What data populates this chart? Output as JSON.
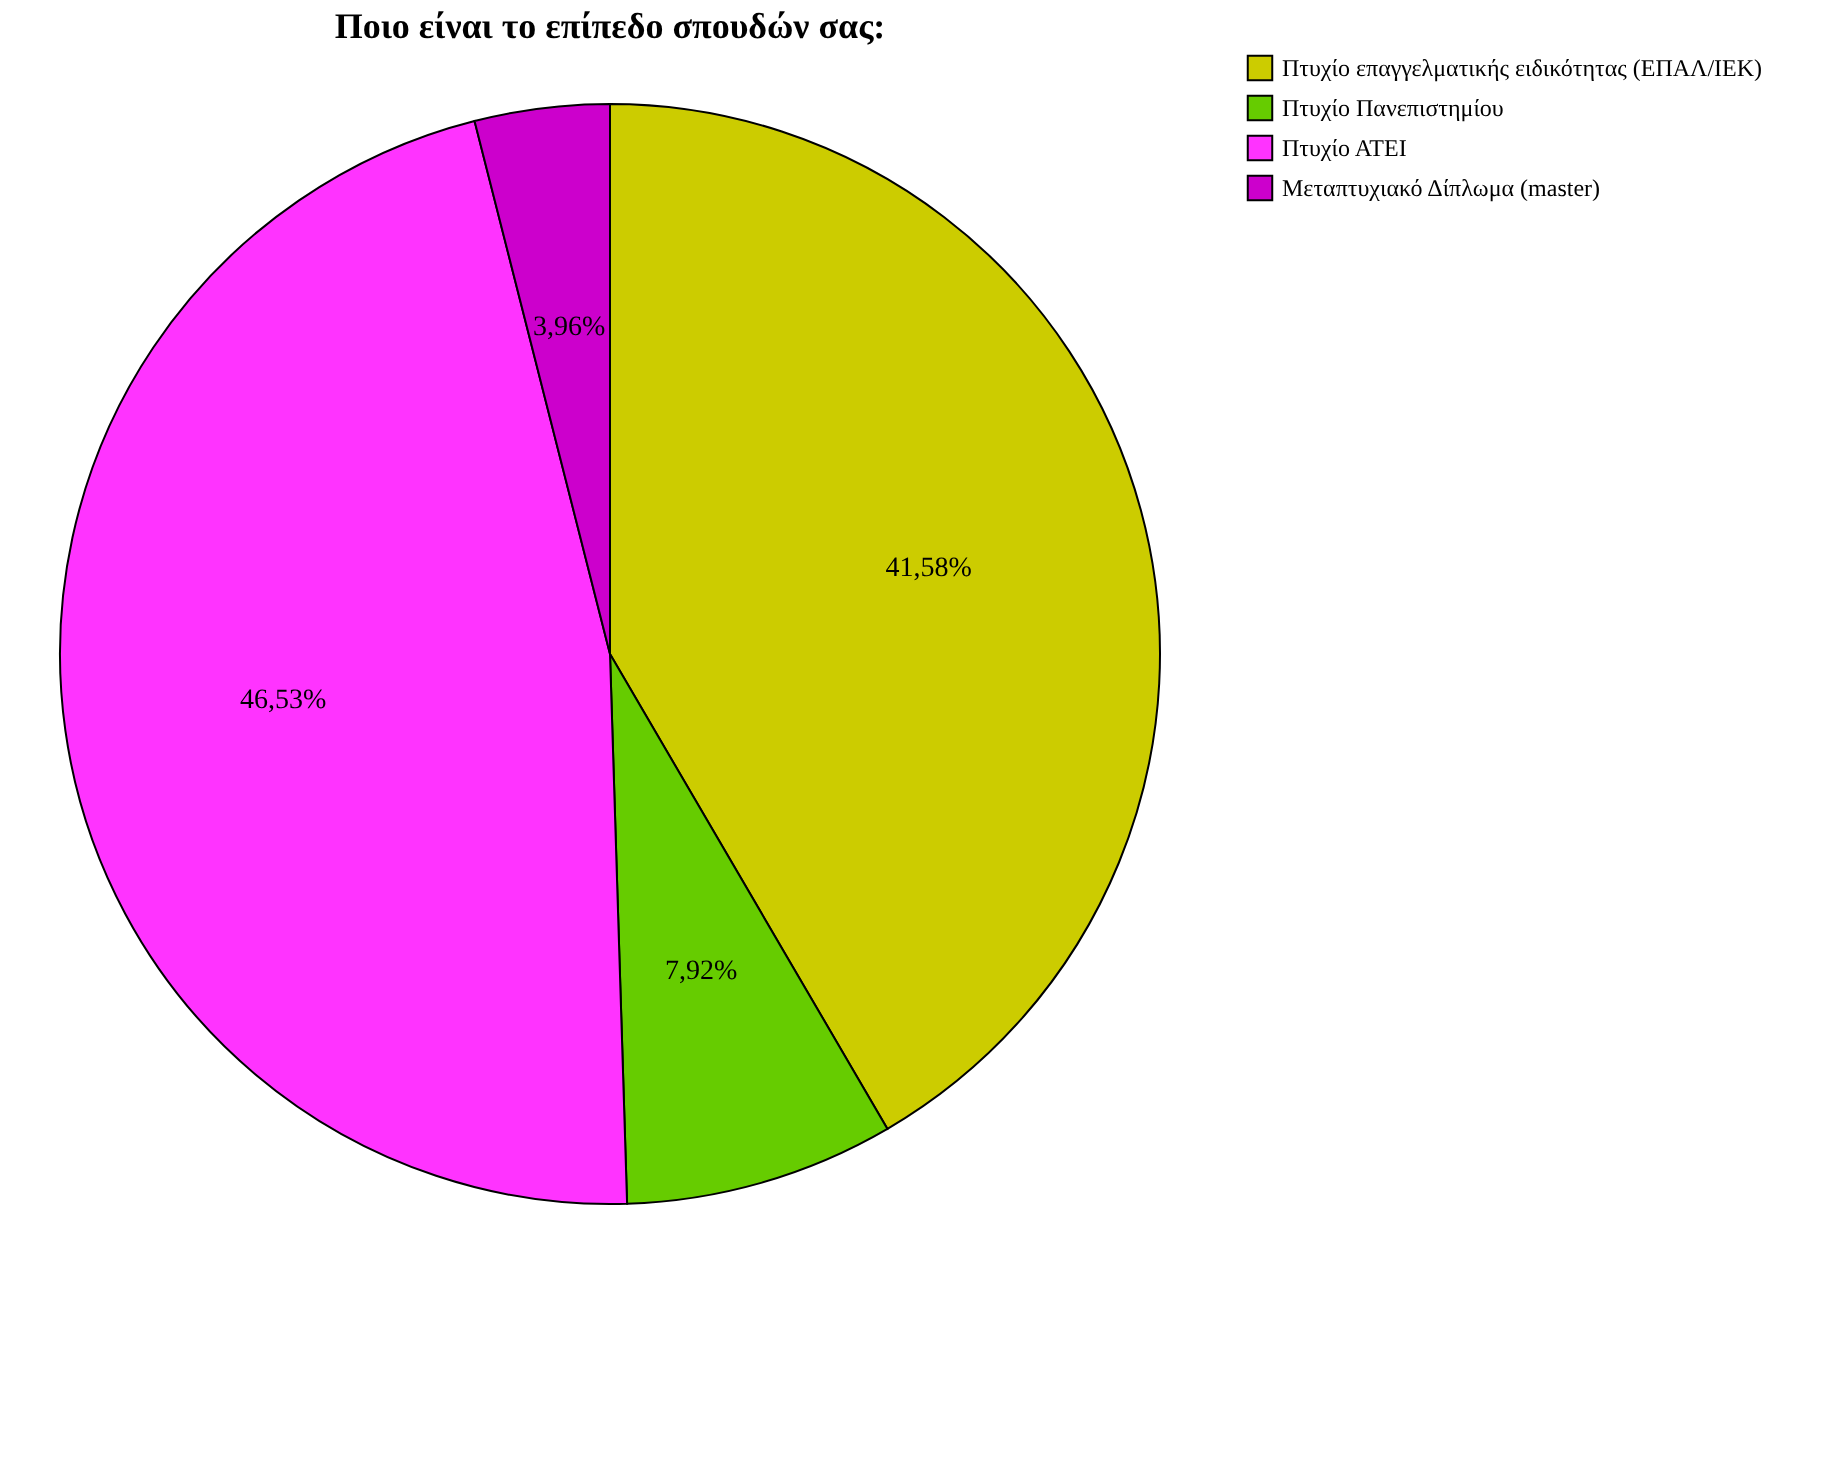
{
  "chart_data": {
    "type": "pie",
    "title": "Ποιο είναι το επίπεδο σπουδών σας:",
    "categories": [
      "Πτυχίο επαγγελματικής ειδικότητας (ΕΠΑΛ/ΙΕΚ)",
      "Πτυχίο Πανεπιστημίου",
      "Πτυχίο ΑΤΕΙ",
      "Μεταπτυχιακό Δίπλωμα (master)"
    ],
    "values": [
      41.58,
      7.92,
      46.53,
      3.96
    ],
    "colors": [
      "#cccc00",
      "#66cc00",
      "#ff33ff",
      "#cc00cc"
    ],
    "value_labels": [
      "41,58%",
      "7,92%",
      "46,53%",
      "3,96%"
    ],
    "legend": "top right"
  }
}
